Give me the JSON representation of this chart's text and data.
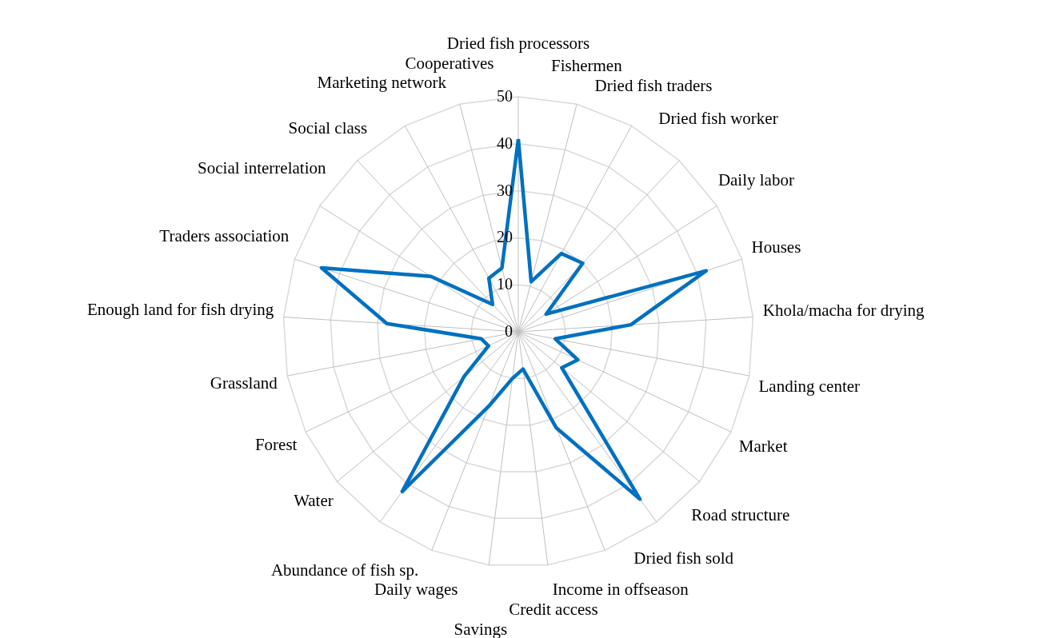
{
  "chart_data": {
    "type": "radar",
    "categories": [
      "Dried fish processors",
      "Fishermen",
      "Dried fish traders",
      "Dried fish worker",
      "Daily labor",
      "Houses",
      "Khola/macha for drying",
      "Landing center",
      "Market",
      "Road structure",
      "Dried fish sold",
      "Income in offseason",
      "Credit access",
      "Savings",
      "Daily wages",
      "Abundance of fish sp.",
      "Water",
      "Forest",
      "Grassland",
      "Enough land for fish drying",
      "Traders association",
      "Social interrelation",
      "Social class",
      "Marketing network",
      "Cooperatives"
    ],
    "series": [
      {
        "color": "#0070c0",
        "values": [
          41,
          11,
          19,
          20,
          7,
          42,
          24,
          8,
          14,
          12,
          44,
          22,
          8,
          10,
          17,
          42,
          15,
          7,
          8,
          28,
          44,
          22,
          8,
          13,
          14
        ]
      }
    ],
    "ylim": [
      0,
      50
    ],
    "yticks": [
      0,
      10,
      20,
      30,
      40,
      50
    ],
    "grid": true
  }
}
